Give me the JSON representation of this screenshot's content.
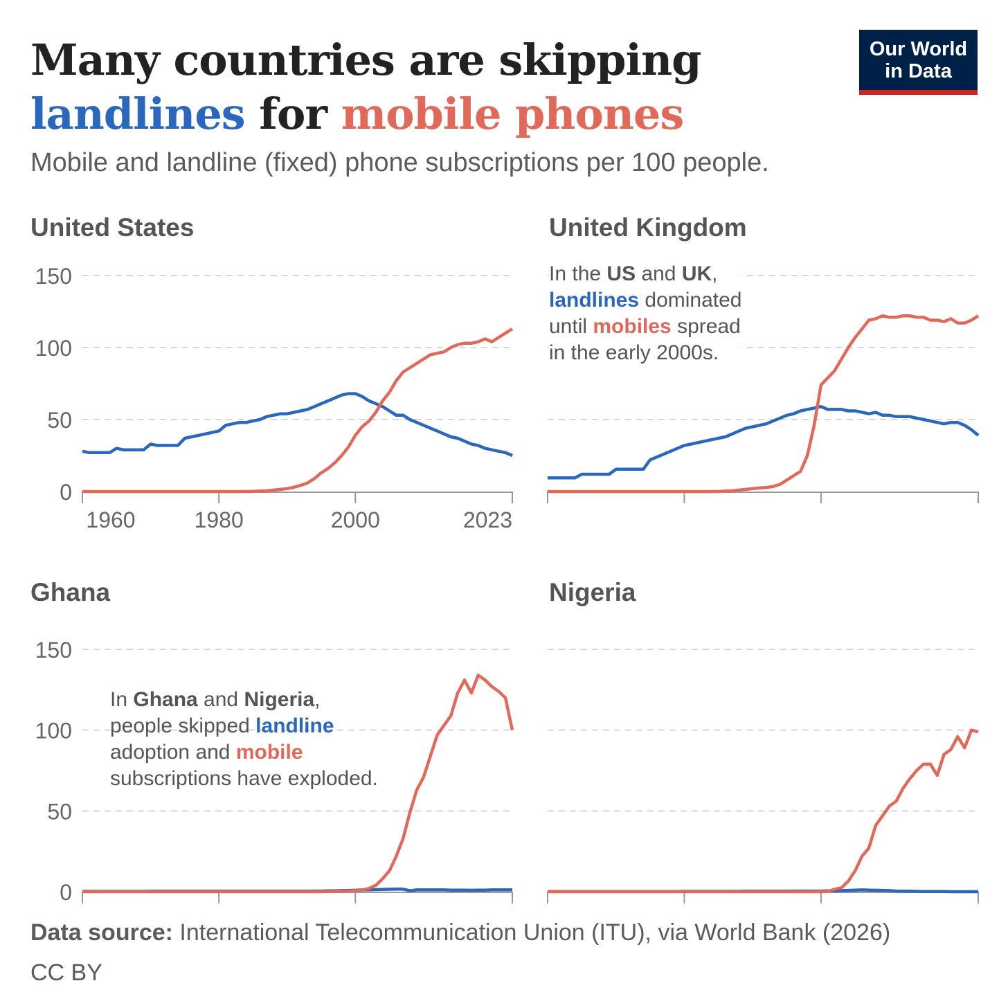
{
  "title": {
    "line1": "Many countries are skipping",
    "landlines": "landlines",
    "for": "for",
    "mobile": "mobile phones"
  },
  "subtitle": "Mobile and landline (fixed) phone subscriptions per 100 people.",
  "logo": {
    "line1": "Our World",
    "line2": "in Data"
  },
  "colors": {
    "landline": "#2a68bd",
    "mobile": "#e0695a"
  },
  "annotations": {
    "us_uk": [
      [
        "In the ",
        ""
      ],
      [
        "US",
        "b"
      ],
      [
        " and ",
        ""
      ],
      [
        "UK",
        "b"
      ],
      [
        ",",
        ""
      ],
      [
        "\n",
        ""
      ],
      [
        "landlines",
        "blue"
      ],
      [
        " dominated",
        ""
      ],
      [
        "\n",
        ""
      ],
      [
        "until ",
        ""
      ],
      [
        "mobiles",
        "red"
      ],
      [
        " spread",
        ""
      ],
      [
        "\n",
        ""
      ],
      [
        "in the early 2000s.",
        ""
      ]
    ],
    "gh_ng": [
      [
        "In ",
        ""
      ],
      [
        "Ghana",
        "b"
      ],
      [
        " and ",
        ""
      ],
      [
        "Nigeria",
        "b"
      ],
      [
        ",",
        ""
      ],
      [
        "\n",
        ""
      ],
      [
        "people skipped ",
        ""
      ],
      [
        "landline",
        "blue"
      ],
      [
        "\n",
        ""
      ],
      [
        "adoption and ",
        ""
      ],
      [
        "mobile",
        "red"
      ],
      [
        "\n",
        ""
      ],
      [
        "subscriptions have exploded.",
        ""
      ]
    ]
  },
  "footer": {
    "source_label": "Data source:",
    "source": " International Telecommunication Union (ITU), via World Bank (2026)",
    "license": "CC BY"
  },
  "chart_data": [
    {
      "type": "line",
      "title": "United States",
      "xlim": [
        1960,
        2023
      ],
      "ylim": [
        0,
        150
      ],
      "yticks": [
        0,
        50,
        100,
        150
      ],
      "xticks": [
        1960,
        1980,
        2000,
        2023
      ],
      "x_start": 1960,
      "series": [
        {
          "name": "Landline",
          "values": [
            28,
            27,
            27,
            27,
            27,
            30,
            29,
            29,
            29,
            29,
            33,
            32,
            32,
            32,
            32,
            37,
            38,
            39,
            40,
            41,
            42,
            46,
            47,
            48,
            48,
            49,
            50,
            52,
            53,
            54,
            54,
            55,
            56,
            57,
            59,
            61,
            63,
            65,
            67,
            68,
            68,
            66,
            63,
            61,
            59,
            56,
            53,
            53,
            50,
            48,
            46,
            44,
            42,
            40,
            38,
            37,
            35,
            33,
            32,
            30,
            29,
            28,
            27,
            25
          ]
        },
        {
          "name": "Mobile",
          "values": [
            0,
            0,
            0,
            0,
            0,
            0,
            0,
            0,
            0,
            0,
            0,
            0,
            0,
            0,
            0,
            0,
            0,
            0,
            0,
            0,
            0,
            0,
            0,
            0,
            0,
            0.1,
            0.3,
            0.5,
            1,
            1.5,
            2,
            3,
            4.3,
            6,
            9,
            13,
            16,
            20,
            25,
            31,
            39,
            45,
            49,
            55,
            63,
            69,
            77,
            83,
            86,
            89,
            92,
            95,
            96,
            97,
            100,
            102,
            103,
            103,
            104,
            106,
            104,
            107,
            110,
            113
          ]
        }
      ]
    },
    {
      "type": "line",
      "title": "United Kingdom",
      "xlim": [
        1960,
        2023
      ],
      "ylim": [
        0,
        150
      ],
      "x_start": 1960,
      "series": [
        {
          "name": "Landline",
          "values": [
            9.5,
            9.5,
            9.5,
            9.5,
            9.5,
            12,
            12,
            12,
            12,
            12,
            15.5,
            15.5,
            15.5,
            15.5,
            15.5,
            22,
            24,
            26,
            28,
            30,
            32,
            33,
            34,
            35,
            36,
            37,
            38,
            40,
            42,
            44,
            45,
            46,
            47,
            49,
            51,
            53,
            54,
            56,
            57,
            58,
            59,
            57,
            57,
            57,
            56,
            56,
            55,
            54,
            55,
            53,
            53,
            52,
            52,
            52,
            51,
            50,
            49,
            48,
            47,
            48,
            48,
            46,
            43,
            39
          ]
        },
        {
          "name": "Mobile",
          "values": [
            0,
            0,
            0,
            0,
            0,
            0,
            0,
            0,
            0,
            0,
            0,
            0,
            0,
            0,
            0,
            0,
            0,
            0,
            0,
            0,
            0,
            0,
            0,
            0,
            0,
            0,
            0.3,
            0.5,
            1,
            1.5,
            2,
            2.5,
            2.8,
            3.5,
            5,
            8,
            11,
            14,
            25,
            46,
            74,
            79,
            84,
            92,
            100,
            107,
            113,
            119,
            120,
            122,
            121,
            121,
            122,
            122,
            121,
            121,
            119,
            119,
            118,
            120,
            117,
            117,
            119,
            122
          ]
        }
      ]
    },
    {
      "type": "line",
      "title": "Ghana",
      "xlim": [
        1960,
        2023
      ],
      "ylim": [
        0,
        150
      ],
      "yticks": [
        0,
        50,
        100,
        150
      ],
      "x_start": 1960,
      "series": [
        {
          "name": "Landline",
          "values": [
            0.2,
            0.2,
            0.2,
            0.2,
            0.2,
            0.2,
            0.2,
            0.2,
            0.2,
            0.2,
            0.3,
            0.3,
            0.3,
            0.3,
            0.3,
            0.3,
            0.3,
            0.3,
            0.3,
            0.3,
            0.3,
            0.3,
            0.3,
            0.3,
            0.3,
            0.3,
            0.3,
            0.3,
            0.3,
            0.3,
            0.3,
            0.3,
            0.3,
            0.3,
            0.4,
            0.4,
            0.5,
            0.6,
            0.7,
            0.8,
            0.9,
            1.1,
            1.2,
            1.3,
            1.4,
            1.5,
            1.6,
            1.6,
            0.6,
            1.1,
            1.1,
            1.1,
            1.1,
            1.1,
            1,
            1,
            1,
            0.9,
            1,
            1,
            1.1,
            1.1,
            1.1,
            1.1
          ]
        },
        {
          "name": "Mobile",
          "values": [
            0,
            0,
            0,
            0,
            0,
            0,
            0,
            0,
            0,
            0,
            0,
            0,
            0,
            0,
            0,
            0,
            0,
            0,
            0,
            0,
            0,
            0,
            0,
            0,
            0,
            0,
            0,
            0,
            0,
            0,
            0,
            0,
            0,
            0,
            0,
            0,
            0.1,
            0.2,
            0.3,
            0.4,
            0.7,
            1,
            2,
            4,
            8,
            13,
            22,
            33,
            49,
            63,
            71,
            84,
            97,
            103,
            109,
            123,
            131,
            123,
            134,
            131,
            127,
            124,
            120,
            100
          ]
        }
      ]
    },
    {
      "type": "line",
      "title": "Nigeria",
      "xlim": [
        1960,
        2023
      ],
      "ylim": [
        0,
        150
      ],
      "x_start": 1960,
      "series": [
        {
          "name": "Landline",
          "values": [
            0.1,
            0.1,
            0.1,
            0.1,
            0.1,
            0.1,
            0.1,
            0.1,
            0.1,
            0.1,
            0.1,
            0.1,
            0.1,
            0.1,
            0.1,
            0.1,
            0.1,
            0.1,
            0.1,
            0.1,
            0.2,
            0.2,
            0.2,
            0.2,
            0.2,
            0.2,
            0.2,
            0.2,
            0.2,
            0.3,
            0.3,
            0.3,
            0.3,
            0.3,
            0.3,
            0.3,
            0.4,
            0.4,
            0.4,
            0.4,
            0.4,
            0.5,
            0.5,
            0.7,
            0.8,
            1,
            1.1,
            1,
            0.9,
            0.8,
            0.7,
            0.4,
            0.3,
            0.3,
            0.2,
            0.1,
            0.1,
            0.1,
            0.1,
            0,
            0,
            0,
            0,
            0
          ]
        },
        {
          "name": "Mobile",
          "values": [
            0,
            0,
            0,
            0,
            0,
            0,
            0,
            0,
            0,
            0,
            0,
            0,
            0,
            0,
            0,
            0,
            0,
            0,
            0,
            0,
            0,
            0,
            0,
            0,
            0,
            0,
            0,
            0,
            0,
            0,
            0,
            0,
            0,
            0,
            0,
            0,
            0,
            0,
            0,
            0,
            0,
            0.2,
            1.5,
            2.5,
            6.5,
            13,
            22,
            27,
            41,
            47,
            53,
            56,
            64,
            70,
            75,
            79,
            79,
            72,
            85,
            88,
            96,
            89,
            100,
            99
          ]
        }
      ]
    }
  ]
}
